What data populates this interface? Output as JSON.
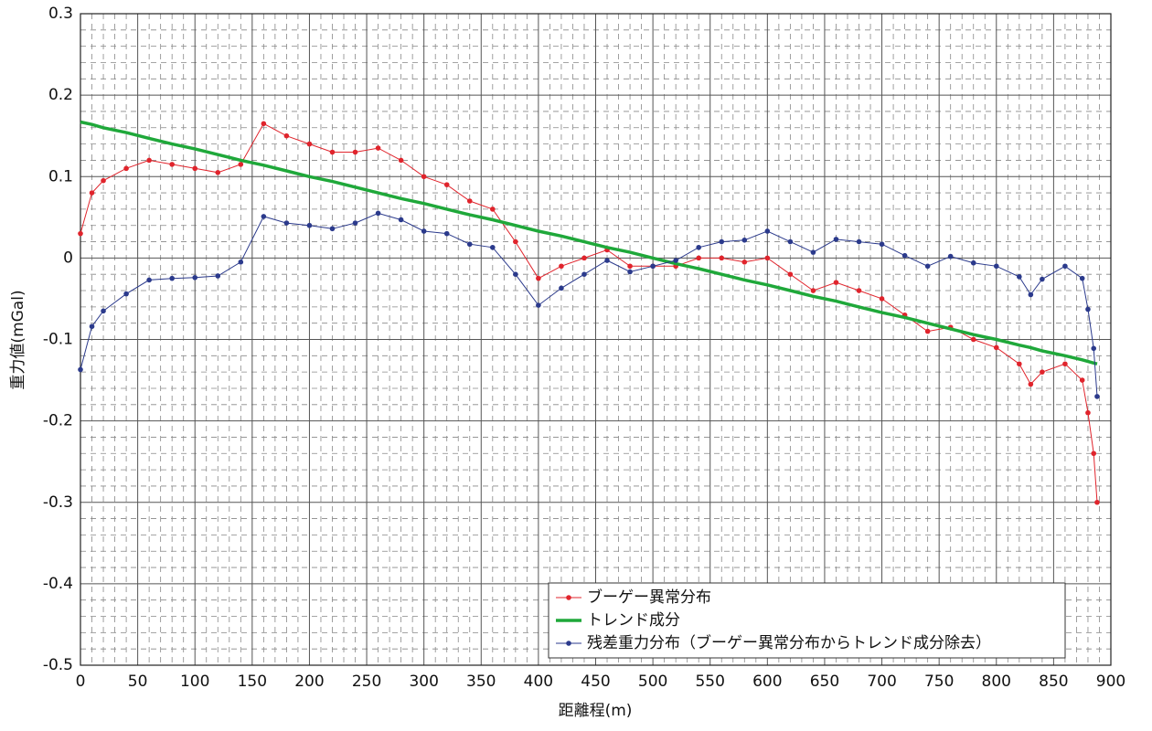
{
  "chart_data": {
    "type": "line",
    "xlabel": "距離程(m)",
    "ylabel": "重力値(mGal)",
    "x": [
      0,
      10,
      20,
      40,
      60,
      80,
      100,
      120,
      140,
      160,
      180,
      200,
      220,
      240,
      260,
      280,
      300,
      320,
      340,
      360,
      380,
      400,
      420,
      440,
      460,
      480,
      500,
      520,
      540,
      560,
      580,
      600,
      620,
      640,
      660,
      680,
      700,
      720,
      740,
      760,
      780,
      800,
      820,
      830,
      840,
      860,
      875,
      880,
      885,
      888
    ],
    "series": [
      {
        "name": "ブーゲー異常分布",
        "color": "#e0242c",
        "markers": true,
        "width": 1,
        "values": [
          0.03,
          0.08,
          0.095,
          0.11,
          0.12,
          0.115,
          0.11,
          0.105,
          0.115,
          0.165,
          0.15,
          0.14,
          0.13,
          0.13,
          0.135,
          0.12,
          0.1,
          0.09,
          0.07,
          0.06,
          0.02,
          -0.025,
          -0.01,
          0.0,
          0.01,
          -0.01,
          -0.01,
          -0.01,
          0.0,
          0.0,
          -0.005,
          0.0,
          -0.02,
          -0.04,
          -0.03,
          -0.04,
          -0.05,
          -0.07,
          -0.09,
          -0.085,
          -0.1,
          -0.11,
          -0.13,
          -0.155,
          -0.14,
          -0.13,
          -0.15,
          -0.19,
          -0.24,
          -0.3
        ]
      },
      {
        "name": "トレンド成分",
        "color": "#1fa83a",
        "markers": false,
        "width": 3.5,
        "values": [
          0.167,
          0.164,
          0.16,
          0.154,
          0.147,
          0.14,
          0.134,
          0.127,
          0.12,
          0.114,
          0.107,
          0.1,
          0.094,
          0.087,
          0.08,
          0.073,
          0.067,
          0.06,
          0.053,
          0.047,
          0.04,
          0.033,
          0.027,
          0.02,
          0.013,
          0.007,
          0.0,
          -0.007,
          -0.013,
          -0.02,
          -0.027,
          -0.033,
          -0.04,
          -0.047,
          -0.053,
          -0.06,
          -0.067,
          -0.073,
          -0.08,
          -0.087,
          -0.094,
          -0.1,
          -0.107,
          -0.11,
          -0.114,
          -0.12,
          -0.125,
          -0.127,
          -0.129,
          -0.13
        ]
      },
      {
        "name": "残差重力分布（ブーゲー異常分布からトレンド成分除去）",
        "color": "#2b3a8c",
        "markers": true,
        "width": 1,
        "values": [
          -0.137,
          -0.084,
          -0.065,
          -0.044,
          -0.027,
          -0.025,
          -0.024,
          -0.022,
          -0.005,
          0.051,
          0.043,
          0.04,
          0.036,
          0.043,
          0.055,
          0.047,
          0.033,
          0.03,
          0.017,
          0.013,
          -0.02,
          -0.058,
          -0.037,
          -0.02,
          -0.003,
          -0.017,
          -0.01,
          -0.003,
          0.013,
          0.02,
          0.022,
          0.033,
          0.02,
          0.007,
          0.023,
          0.02,
          0.017,
          0.003,
          -0.01,
          0.002,
          -0.006,
          -0.01,
          -0.023,
          -0.045,
          -0.026,
          -0.01,
          -0.025,
          -0.063,
          -0.111,
          -0.17
        ]
      }
    ],
    "xlim": [
      0,
      900
    ],
    "xticks": [
      0,
      50,
      100,
      150,
      200,
      250,
      300,
      350,
      400,
      450,
      500,
      550,
      600,
      650,
      700,
      750,
      800,
      850,
      900
    ],
    "ylim": [
      -0.5,
      0.3
    ],
    "yticks": [
      -0.5,
      -0.4,
      -0.3,
      -0.2,
      -0.1,
      0,
      0.1,
      0.2,
      0.3
    ],
    "grid": true,
    "minor_grid": true,
    "legend": "lower right"
  }
}
